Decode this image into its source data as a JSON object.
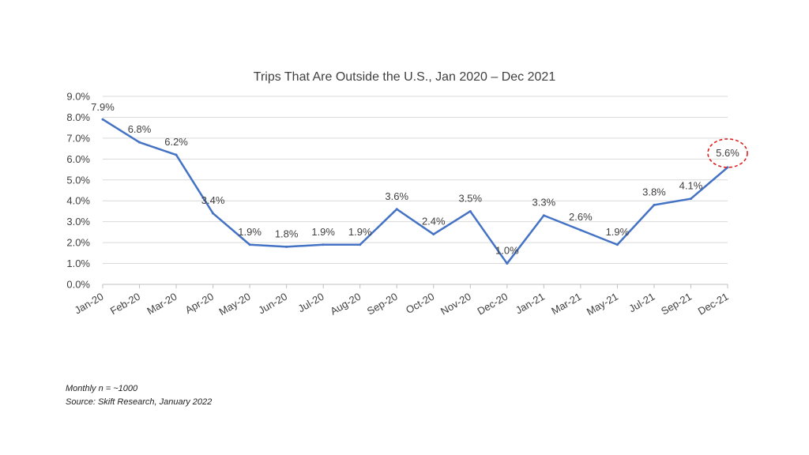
{
  "chart_data": {
    "type": "line",
    "title": "Trips That Are Outside the U.S., Jan 2020 – Dec 2021",
    "xlabel": "",
    "ylabel": "",
    "ylim": [
      0,
      9
    ],
    "y_tick_labels": [
      "0.0%",
      "1.0%",
      "2.0%",
      "3.0%",
      "4.0%",
      "5.0%",
      "6.0%",
      "7.0%",
      "8.0%",
      "9.0%"
    ],
    "grid": true,
    "legend": "none",
    "line_color": "#4472C4",
    "highlight_color": "#E02020",
    "highlight_index": 17,
    "categories": [
      "Jan-20",
      "Feb-20",
      "Mar-20",
      "Apr-20",
      "May-20",
      "Jun-20",
      "Jul-20",
      "Aug-20",
      "Sep-20",
      "Oct-20",
      "Nov-20",
      "Dec-20",
      "Jan-21",
      "Mar-21",
      "May-21",
      "Jul-21",
      "Sep-21",
      "Dec-21"
    ],
    "values": [
      7.9,
      6.8,
      6.2,
      3.4,
      1.9,
      1.8,
      1.9,
      1.9,
      3.6,
      2.4,
      3.5,
      1.0,
      3.3,
      2.6,
      1.9,
      3.8,
      4.1,
      5.6
    ],
    "data_labels": [
      "7.9%",
      "6.8%",
      "6.2%",
      "3.4%",
      "1.9%",
      "1.8%",
      "1.9%",
      "1.9%",
      "3.6%",
      "2.4%",
      "3.5%",
      "1.0%",
      "3.3%",
      "2.6%",
      "1.9%",
      "3.8%",
      "4.1%",
      "5.6%"
    ]
  },
  "notes": {
    "sample": "Monthly n = ~1000",
    "source": "Source: Skift Research, January 2022"
  }
}
